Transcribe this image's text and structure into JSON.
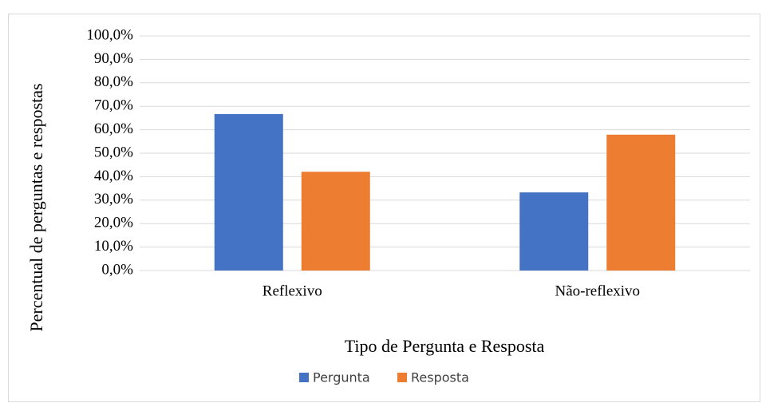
{
  "chart_data": {
    "type": "bar",
    "x_label": "Tipo de Pergunta e Resposta",
    "y_label": "Percentual de perguntas e respostas",
    "categories": [
      "Reflexivo",
      "Não-reflexivo"
    ],
    "series": [
      {
        "name": "Pergunta",
        "color": "#4472c4",
        "values": [
          66.7,
          33.3
        ]
      },
      {
        "name": "Resposta",
        "color": "#ed7d31",
        "values": [
          42.1,
          57.9
        ]
      }
    ],
    "ylim": [
      0,
      100
    ],
    "yticks": [
      {
        "value": 0,
        "label": "0,0%"
      },
      {
        "value": 10,
        "label": "10,0%"
      },
      {
        "value": 20,
        "label": "20,0%"
      },
      {
        "value": 30,
        "label": "30,0%"
      },
      {
        "value": 40,
        "label": "40,0%"
      },
      {
        "value": 50,
        "label": "50,0%"
      },
      {
        "value": 60,
        "label": "60,0%"
      },
      {
        "value": 70,
        "label": "70,0%"
      },
      {
        "value": 80,
        "label": "80,0%"
      },
      {
        "value": 90,
        "label": "90,0%"
      },
      {
        "value": 100,
        "label": "100,0%"
      }
    ],
    "grid": true,
    "legend": "bottom"
  }
}
